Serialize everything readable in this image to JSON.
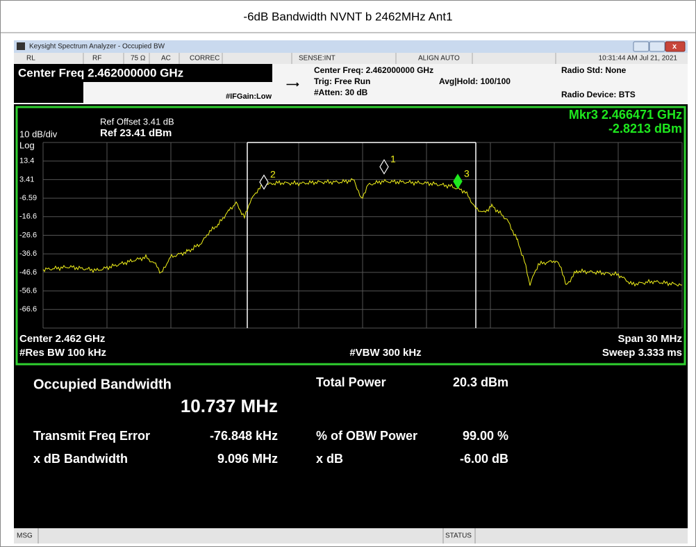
{
  "title": "-6dB Bandwidth NVNT b 2462MHz Ant1",
  "window": {
    "title": "Keysight Spectrum Analyzer - Occupied BW"
  },
  "status_bar": {
    "items": [
      "RL",
      "RF",
      "75 Ω",
      "AC",
      "CORREC",
      "SENSE:INT",
      "ALIGN AUTO",
      "10:31:44 AM Jul 21, 2021"
    ]
  },
  "header": {
    "center_freq": "Center Freq 2.462000000 GHz",
    "if_gain": "#IFGain:Low",
    "center_freq_info": "Center Freq: 2.462000000 GHz",
    "trig": "Trig: Free Run",
    "atten": "#Atten: 30 dB",
    "avg_hold": "Avg|Hold: 100/100",
    "radio_std": "Radio Std: None",
    "radio_device": "Radio Device: BTS"
  },
  "display": {
    "ref_offset": "Ref Offset 3.41 dB",
    "ref_level": "Ref 23.41 dBm",
    "scale": "10 dB/div",
    "scale_type": "Log",
    "marker": "Mkr3  2.466471 GHz",
    "marker_value": "-2.8213 dBm",
    "y_labels": [
      "13.4",
      "3.41",
      "-6.59",
      "-16.6",
      "-26.6",
      "-36.6",
      "-46.6",
      "-56.6",
      "-66.6"
    ],
    "marker_labels": [
      "1",
      "2",
      "3"
    ],
    "center": "Center  2.462 GHz",
    "res_bw": "#Res BW  100 kHz",
    "vbw": "#VBW  300 kHz",
    "span": "Span 30 MHz",
    "sweep": "Sweep  3.333 ms"
  },
  "results": {
    "obw_label": "Occupied Bandwidth",
    "obw_value": "10.737 MHz",
    "total_power_label": "Total Power",
    "total_power_value": "20.3 dBm",
    "freq_error_label": "Transmit Freq Error",
    "freq_error_value": "-76.848 kHz",
    "obw_power_label": "% of OBW Power",
    "obw_power_value": "99.00 %",
    "xdb_bw_label": "x dB Bandwidth",
    "xdb_bw_value": "9.096 MHz",
    "xdb_label": "x dB",
    "xdb_value": "-6.00 dB"
  },
  "footer": {
    "msg": "MSG",
    "status": "STATUS"
  }
}
